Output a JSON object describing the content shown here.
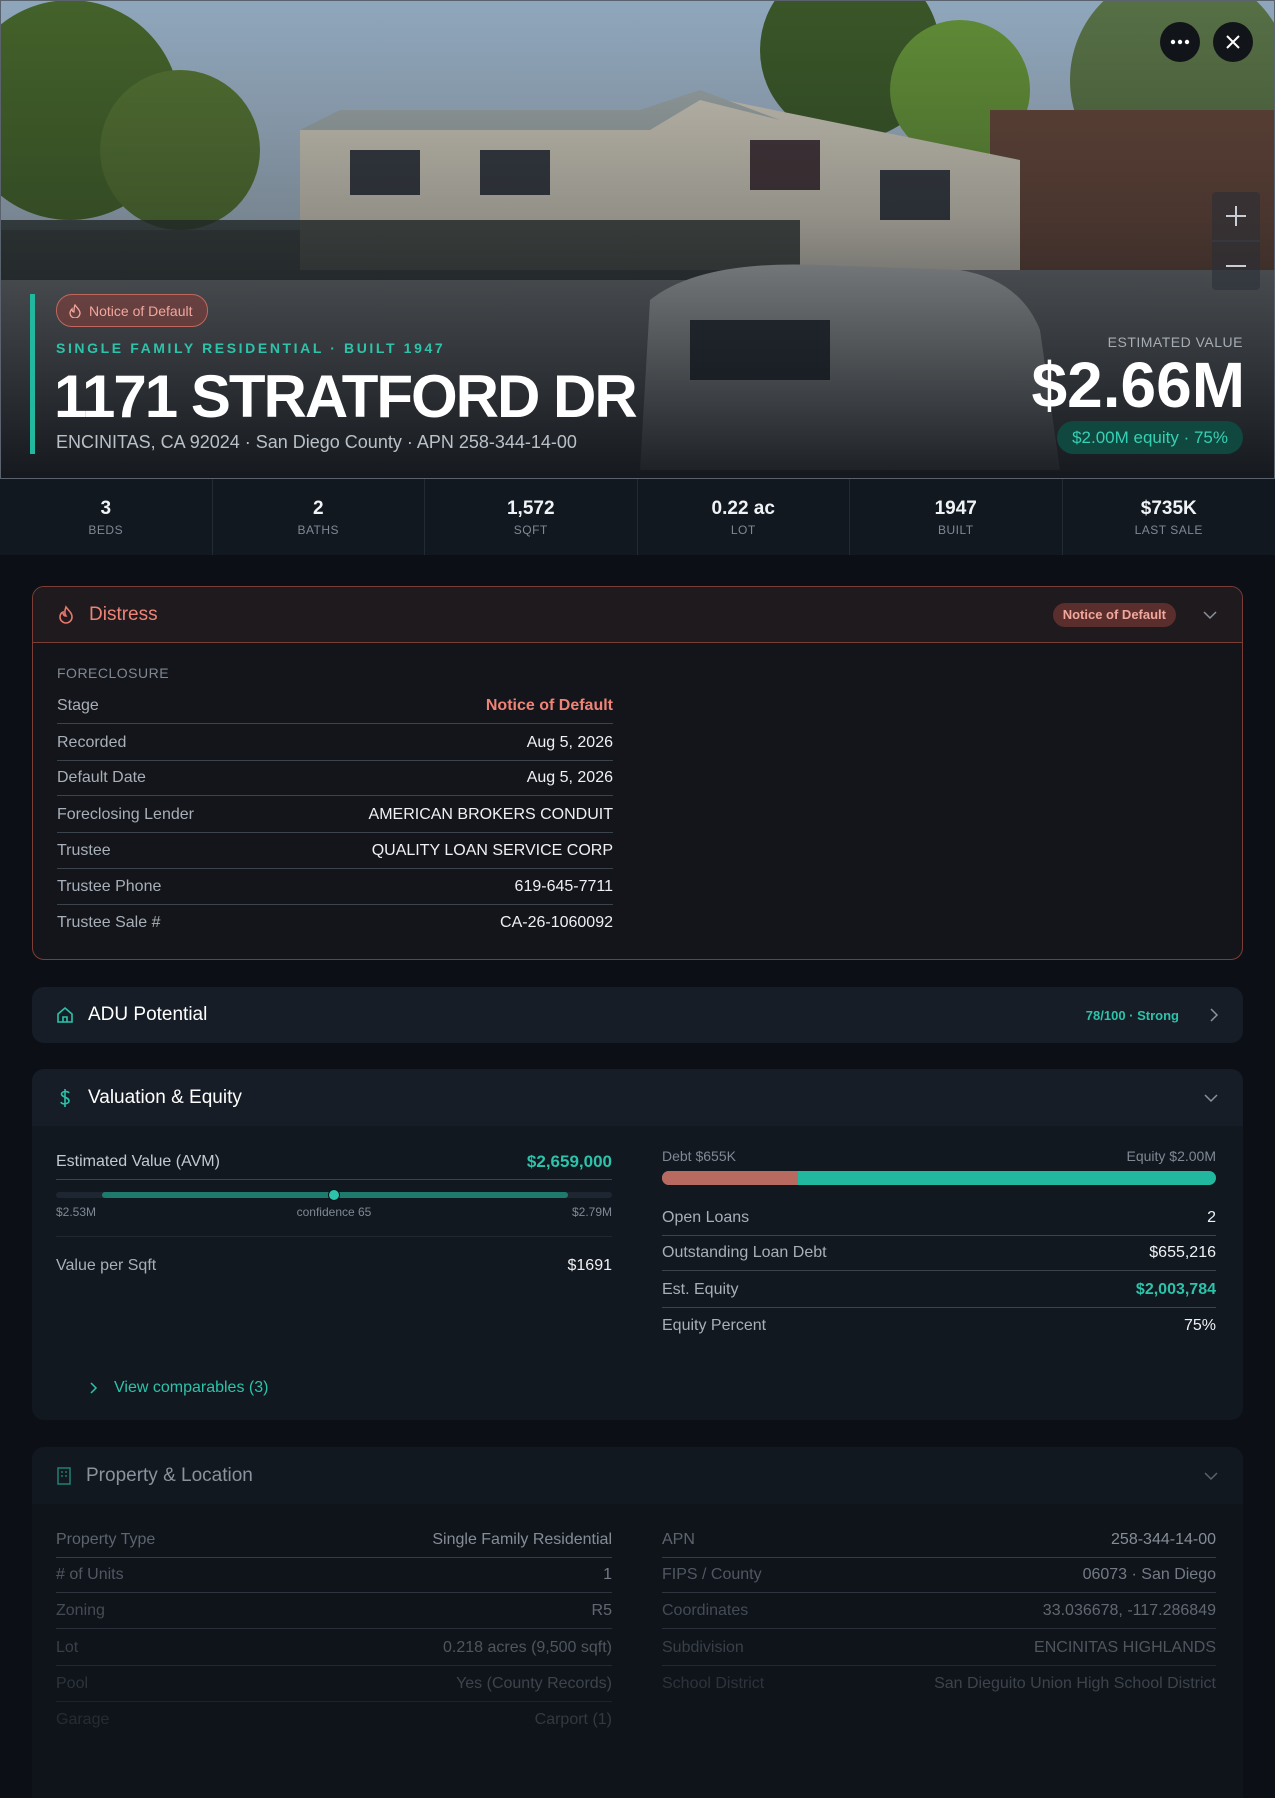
{
  "hero": {
    "badge": "Notice of Default",
    "subtitle": "SINGLE FAMILY RESIDENTIAL · BUILT 1947",
    "title": "1171 STRATFORD DR",
    "address": "ENCINITAS, CA 92024 · San Diego County · APN 258-344-14-00",
    "estimate_label": "ESTIMATED VALUE",
    "estimate": "$2.66M",
    "equity": "$2.00M equity · 75%"
  },
  "stats": [
    {
      "value": "3",
      "label": "BEDS"
    },
    {
      "value": "2",
      "label": "BATHS"
    },
    {
      "value": "1,572",
      "label": "SQFT"
    },
    {
      "value": "0.22 ac",
      "label": "LOT"
    },
    {
      "value": "1947",
      "label": "BUILT"
    },
    {
      "value": "$735K",
      "label": "LAST SALE"
    }
  ],
  "distress": {
    "title": "Distress",
    "badge": "Notice of Default",
    "group": "FORECLOSURE",
    "rows": [
      {
        "label": "Stage",
        "value": "Notice of Default"
      },
      {
        "label": "Recorded",
        "value": "Aug 5, 2026"
      },
      {
        "label": "Default Date",
        "value": "Aug 5, 2026"
      },
      {
        "label": "Foreclosing Lender",
        "value": "AMERICAN BROKERS CONDUIT"
      },
      {
        "label": "Trustee",
        "value": "QUALITY LOAN SERVICE CORP"
      },
      {
        "label": "Trustee Phone",
        "value": "619-645-7711"
      },
      {
        "label": "Trustee Sale #",
        "value": "CA-26-1060092"
      }
    ]
  },
  "adu": {
    "title": "ADU Potential",
    "score": "78/100 · Strong"
  },
  "valuation": {
    "title": "Valuation & Equity",
    "avm_label": "Estimated Value (AVM)",
    "avm": "$2,659,000",
    "range_low": "$2.53M",
    "confidence": "confidence 65",
    "range_high": "$2.79M",
    "per_sqft_label": "Value per Sqft",
    "per_sqft": "$1691",
    "debt_label": "Debt $655K",
    "equity_label": "Equity $2.00M",
    "rows": [
      {
        "label": "Open Loans",
        "value": "2"
      },
      {
        "label": "Outstanding Loan Debt",
        "value": "$655,216"
      },
      {
        "label": "Est. Equity",
        "value": "$2,003,784"
      },
      {
        "label": "Equity Percent",
        "value": "75%"
      }
    ],
    "comparables": "View comparables (3)"
  },
  "property": {
    "title": "Property & Location",
    "left": [
      {
        "label": "Property Type",
        "value": "Single Family Residential"
      },
      {
        "label": "# of Units",
        "value": "1"
      },
      {
        "label": "Zoning",
        "value": "R5"
      },
      {
        "label": "Lot",
        "value": "0.218 acres (9,500 sqft)"
      },
      {
        "label": "Pool",
        "value": "Yes (County Records)"
      },
      {
        "label": "Garage",
        "value": "Carport (1)"
      }
    ],
    "right": [
      {
        "label": "APN",
        "value": "258-344-14-00"
      },
      {
        "label": "FIPS / County",
        "value": "06073 · San Diego"
      },
      {
        "label": "Coordinates",
        "value": "33.036678, -117.286849"
      },
      {
        "label": "Subdivision",
        "value": "ENCINITAS HIGHLANDS"
      },
      {
        "label": "School District",
        "value": "San Dieguito Union High School District"
      }
    ]
  }
}
